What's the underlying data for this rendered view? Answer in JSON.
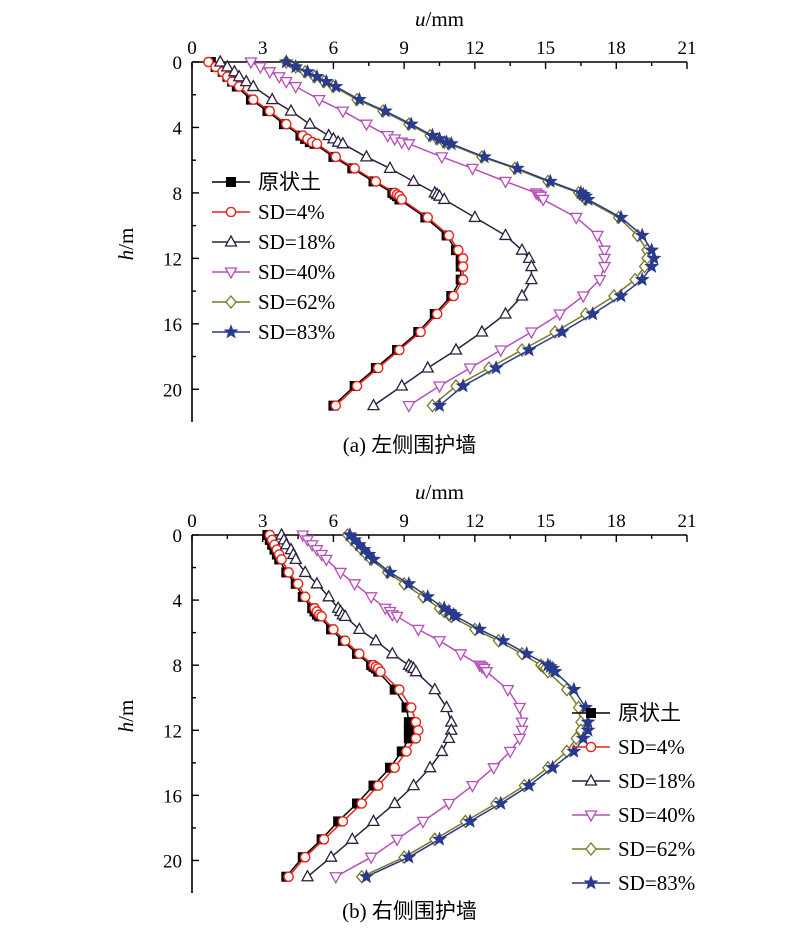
{
  "panels": [
    {
      "caption": "(a) 左侧围护墙",
      "chart_data": {
        "type": "line",
        "orientation": "depth-profile",
        "xlabel_var": "u",
        "xlabel_unit": "/mm",
        "ylabel_var": "h",
        "ylabel_unit": "/m",
        "x_ticks": [
          "0",
          "3",
          "6",
          "9",
          "12",
          "15",
          "18",
          "21"
        ],
        "y_ticks": [
          "0",
          "4",
          "8",
          "12",
          "16",
          "20"
        ],
        "xlim": [
          0,
          21
        ],
        "ylim": [
          0,
          22
        ],
        "x_axis_position": "top",
        "y_inverted": true,
        "legend_position": "left-middle",
        "series": [
          {
            "name": "原状土",
            "color": "#000000",
            "marker": "square",
            "h": [
              0,
              0.3,
              0.6,
              0.9,
              1.2,
              1.5,
              2.3,
              3.0,
              3.8,
              4.5,
              4.7,
              4.9,
              5.0,
              5.8,
              6.5,
              7.3,
              8.0,
              8.1,
              8.2,
              8.4,
              9.5,
              10.6,
              11.5,
              12.0,
              12.5,
              13.3,
              14.3,
              15.4,
              16.5,
              17.6,
              18.7,
              19.8,
              21.0
            ],
            "u": [
              0.8,
              1.0,
              1.3,
              1.5,
              1.7,
              1.9,
              2.5,
              3.2,
              3.9,
              4.6,
              4.8,
              5.0,
              5.2,
              6.0,
              6.8,
              7.7,
              8.5,
              8.6,
              8.7,
              8.8,
              9.9,
              10.8,
              11.2,
              11.4,
              11.4,
              11.4,
              11.0,
              10.3,
              9.6,
              8.7,
              7.8,
              6.9,
              6.0
            ]
          },
          {
            "name": "SD=4%",
            "color": "#e8231a",
            "marker": "circle",
            "h": [
              0,
              0.3,
              0.6,
              0.9,
              1.2,
              1.5,
              2.3,
              3.0,
              3.8,
              4.5,
              4.7,
              4.9,
              5.0,
              5.8,
              6.5,
              7.3,
              8.0,
              8.1,
              8.2,
              8.4,
              9.5,
              10.6,
              11.5,
              12.0,
              12.5,
              13.3,
              14.3,
              15.4,
              16.5,
              17.6,
              18.7,
              19.8,
              21.0
            ],
            "u": [
              0.7,
              1.0,
              1.3,
              1.5,
              1.7,
              2.0,
              2.6,
              3.3,
              4.0,
              4.7,
              4.9,
              5.1,
              5.3,
              6.1,
              6.9,
              7.8,
              8.6,
              8.7,
              8.8,
              8.9,
              10.0,
              10.9,
              11.3,
              11.5,
              11.5,
              11.5,
              11.1,
              10.4,
              9.7,
              8.8,
              7.9,
              7.0,
              6.1
            ]
          },
          {
            "name": "SD=18%",
            "color": "#2a2040",
            "marker": "triangle-up",
            "h": [
              0,
              0.3,
              0.6,
              0.9,
              1.2,
              1.5,
              2.3,
              3.0,
              3.8,
              4.5,
              4.7,
              4.9,
              5.0,
              5.8,
              6.5,
              7.3,
              8.0,
              8.1,
              8.2,
              8.4,
              9.5,
              10.6,
              11.5,
              12.0,
              12.5,
              13.3,
              14.3,
              15.4,
              16.5,
              17.6,
              18.7,
              19.8,
              21.0
            ],
            "u": [
              1.2,
              1.5,
              1.8,
              2.0,
              2.3,
              2.6,
              3.4,
              4.2,
              5.0,
              5.8,
              6.0,
              6.2,
              6.4,
              7.4,
              8.4,
              9.4,
              10.3,
              10.4,
              10.5,
              10.7,
              12.0,
              13.3,
              14.0,
              14.3,
              14.4,
              14.4,
              14.0,
              13.3,
              12.3,
              11.2,
              10.0,
              8.9,
              7.7
            ]
          },
          {
            "name": "SD=40%",
            "color": "#b84fb8",
            "marker": "triangle-down",
            "h": [
              0,
              0.3,
              0.6,
              0.9,
              1.2,
              1.5,
              2.3,
              3.0,
              3.8,
              4.5,
              4.7,
              4.9,
              5.0,
              5.8,
              6.5,
              7.3,
              8.0,
              8.1,
              8.2,
              8.4,
              9.5,
              10.6,
              11.5,
              12.0,
              12.5,
              13.3,
              14.3,
              15.4,
              16.5,
              17.6,
              18.7,
              19.8,
              21.0
            ],
            "u": [
              2.5,
              2.9,
              3.3,
              3.7,
              4.0,
              4.4,
              5.4,
              6.4,
              7.4,
              8.3,
              8.6,
              8.9,
              9.2,
              10.6,
              11.9,
              13.3,
              14.6,
              14.7,
              14.8,
              14.9,
              16.3,
              17.2,
              17.5,
              17.5,
              17.5,
              17.3,
              16.6,
              15.6,
              14.4,
              13.1,
              11.8,
              10.5,
              9.2
            ]
          },
          {
            "name": "SD=62%",
            "color": "#7a7a22",
            "marker": "diamond",
            "h": [
              0,
              0.3,
              0.6,
              0.9,
              1.2,
              1.5,
              2.3,
              3.0,
              3.8,
              4.5,
              4.7,
              4.9,
              5.0,
              5.8,
              6.5,
              7.3,
              8.0,
              8.1,
              8.2,
              8.4,
              9.5,
              10.6,
              11.5,
              12.0,
              12.5,
              13.3,
              14.3,
              15.4,
              16.5,
              17.6,
              18.7,
              19.8,
              21.0
            ],
            "u": [
              4.0,
              4.4,
              4.8,
              5.2,
              5.6,
              6.0,
              7.0,
              8.1,
              9.2,
              10.1,
              10.4,
              10.7,
              10.9,
              12.3,
              13.7,
              15.1,
              16.4,
              16.5,
              16.6,
              16.7,
              18.1,
              18.9,
              19.3,
              19.3,
              19.2,
              18.8,
              17.9,
              16.7,
              15.4,
              14.0,
              12.6,
              11.2,
              10.2
            ]
          },
          {
            "name": "SD=83%",
            "color": "#2a3a8c",
            "marker": "star",
            "h": [
              0,
              0.3,
              0.6,
              0.9,
              1.2,
              1.5,
              2.3,
              3.0,
              3.8,
              4.5,
              4.7,
              4.9,
              5.0,
              5.8,
              6.5,
              7.3,
              8.0,
              8.1,
              8.2,
              8.4,
              9.5,
              10.6,
              11.5,
              12.0,
              12.5,
              13.3,
              14.3,
              15.4,
              16.5,
              17.6,
              18.7,
              19.8,
              21.0
            ],
            "u": [
              4.0,
              4.4,
              4.9,
              5.3,
              5.7,
              6.1,
              7.1,
              8.2,
              9.3,
              10.2,
              10.5,
              10.8,
              11.0,
              12.4,
              13.8,
              15.2,
              16.5,
              16.6,
              16.7,
              16.8,
              18.2,
              19.1,
              19.5,
              19.6,
              19.5,
              19.1,
              18.2,
              17.0,
              15.7,
              14.3,
              12.9,
              11.5,
              10.5
            ]
          }
        ]
      }
    },
    {
      "caption": "(b) 右侧围护墙",
      "chart_data": {
        "type": "line",
        "orientation": "depth-profile",
        "xlabel_var": "u",
        "xlabel_unit": "/mm",
        "ylabel_var": "h",
        "ylabel_unit": "/m",
        "x_ticks": [
          "0",
          "3",
          "6",
          "9",
          "12",
          "15",
          "18",
          "21"
        ],
        "y_ticks": [
          "0",
          "4",
          "8",
          "12",
          "16",
          "20"
        ],
        "xlim": [
          0,
          21
        ],
        "ylim": [
          0,
          22
        ],
        "x_axis_position": "top",
        "y_inverted": true,
        "legend_position": "right-lower",
        "series": [
          {
            "name": "原状土",
            "color": "#000000",
            "marker": "square",
            "h": [
              0,
              0.3,
              0.6,
              0.9,
              1.2,
              1.5,
              2.3,
              3.0,
              3.8,
              4.5,
              4.7,
              4.9,
              5.0,
              5.8,
              6.5,
              7.3,
              8.0,
              8.1,
              8.2,
              8.4,
              9.5,
              10.6,
              11.5,
              12.0,
              12.5,
              13.3,
              14.3,
              15.4,
              16.5,
              17.6,
              18.7,
              19.8,
              21.0
            ],
            "u": [
              3.2,
              3.3,
              3.4,
              3.5,
              3.6,
              3.7,
              4.0,
              4.4,
              4.7,
              5.1,
              5.2,
              5.3,
              5.4,
              5.9,
              6.4,
              7.0,
              7.6,
              7.7,
              7.8,
              7.9,
              8.6,
              9.1,
              9.2,
              9.2,
              9.2,
              8.9,
              8.4,
              7.7,
              7.0,
              6.2,
              5.5,
              4.7,
              4.0
            ]
          },
          {
            "name": "SD=4%",
            "color": "#e8231a",
            "marker": "circle",
            "h": [
              0,
              0.3,
              0.6,
              0.9,
              1.2,
              1.5,
              2.3,
              3.0,
              3.8,
              4.5,
              4.7,
              4.9,
              5.0,
              5.8,
              6.5,
              7.3,
              8.0,
              8.1,
              8.2,
              8.4,
              9.5,
              10.6,
              11.5,
              12.0,
              12.5,
              13.3,
              14.3,
              15.4,
              16.5,
              17.6,
              18.7,
              19.8,
              21.0
            ],
            "u": [
              3.3,
              3.4,
              3.5,
              3.6,
              3.7,
              3.8,
              4.1,
              4.5,
              4.8,
              5.2,
              5.3,
              5.4,
              5.5,
              6.0,
              6.5,
              7.1,
              7.7,
              7.8,
              7.9,
              8.0,
              8.8,
              9.3,
              9.5,
              9.6,
              9.5,
              9.1,
              8.6,
              7.9,
              7.2,
              6.4,
              5.6,
              4.8,
              4.1
            ]
          },
          {
            "name": "SD=18%",
            "color": "#2a2040",
            "marker": "triangle-up",
            "h": [
              0,
              0.3,
              0.6,
              0.9,
              1.2,
              1.5,
              2.3,
              3.0,
              3.8,
              4.5,
              4.7,
              4.9,
              5.0,
              5.8,
              6.5,
              7.3,
              8.0,
              8.1,
              8.2,
              8.4,
              9.5,
              10.6,
              11.5,
              12.0,
              12.5,
              13.3,
              14.3,
              15.4,
              16.5,
              17.6,
              18.7,
              19.8,
              21.0
            ],
            "u": [
              3.8,
              3.9,
              4.0,
              4.2,
              4.3,
              4.4,
              4.8,
              5.3,
              5.8,
              6.2,
              6.3,
              6.4,
              6.5,
              7.1,
              7.8,
              8.5,
              9.2,
              9.3,
              9.4,
              9.5,
              10.3,
              10.8,
              11.0,
              11.0,
              10.9,
              10.6,
              10.1,
              9.4,
              8.6,
              7.7,
              6.8,
              5.9,
              4.9
            ]
          },
          {
            "name": "SD=40%",
            "color": "#b84fb8",
            "marker": "triangle-down",
            "h": [
              0,
              0.3,
              0.6,
              0.9,
              1.2,
              1.5,
              2.3,
              3.0,
              3.8,
              4.5,
              4.7,
              4.9,
              5.0,
              5.8,
              6.5,
              7.3,
              8.0,
              8.1,
              8.2,
              8.4,
              9.5,
              10.6,
              11.5,
              12.0,
              12.5,
              13.3,
              14.3,
              15.4,
              16.5,
              17.6,
              18.7,
              19.8,
              21.0
            ],
            "u": [
              4.7,
              4.9,
              5.1,
              5.3,
              5.5,
              5.7,
              6.3,
              6.9,
              7.6,
              8.2,
              8.4,
              8.5,
              8.7,
              9.6,
              10.5,
              11.4,
              12.2,
              12.3,
              12.4,
              12.5,
              13.4,
              13.9,
              14.0,
              14.0,
              13.9,
              13.5,
              12.8,
              11.9,
              10.9,
              9.8,
              8.7,
              7.6,
              6.1
            ]
          },
          {
            "name": "SD=62%",
            "color": "#7a7a22",
            "marker": "diamond",
            "h": [
              0,
              0.3,
              0.6,
              0.9,
              1.2,
              1.5,
              2.3,
              3.0,
              3.8,
              4.5,
              4.7,
              4.9,
              5.0,
              5.8,
              6.5,
              7.3,
              8.0,
              8.1,
              8.2,
              8.4,
              9.5,
              10.6,
              11.5,
              12.0,
              12.5,
              13.3,
              14.3,
              15.4,
              16.5,
              17.6,
              18.7,
              19.8,
              21.0
            ],
            "u": [
              6.6,
              6.8,
              7.0,
              7.2,
              7.4,
              7.6,
              8.3,
              9.0,
              9.8,
              10.5,
              10.7,
              10.9,
              11.0,
              12.0,
              13.0,
              14.0,
              14.8,
              14.9,
              15.0,
              15.1,
              15.9,
              16.4,
              16.5,
              16.5,
              16.3,
              15.9,
              15.1,
              14.1,
              12.9,
              11.6,
              10.3,
              9.0,
              7.2
            ]
          },
          {
            "name": "SD=83%",
            "color": "#2a3a8c",
            "marker": "star",
            "h": [
              0,
              0.3,
              0.6,
              0.9,
              1.2,
              1.5,
              2.3,
              3.0,
              3.8,
              4.5,
              4.7,
              4.9,
              5.0,
              5.8,
              6.5,
              7.3,
              8.0,
              8.1,
              8.2,
              8.4,
              9.5,
              10.6,
              11.5,
              12.0,
              12.5,
              13.3,
              14.3,
              15.4,
              16.5,
              17.6,
              18.7,
              19.8,
              21.0
            ],
            "u": [
              6.7,
              6.9,
              7.1,
              7.3,
              7.5,
              7.7,
              8.4,
              9.2,
              10.0,
              10.7,
              10.9,
              11.1,
              11.2,
              12.2,
              13.2,
              14.2,
              15.1,
              15.2,
              15.3,
              15.4,
              16.2,
              16.7,
              16.8,
              16.8,
              16.6,
              16.2,
              15.3,
              14.3,
              13.1,
              11.8,
              10.5,
              9.2,
              7.4
            ]
          }
        ]
      }
    }
  ]
}
